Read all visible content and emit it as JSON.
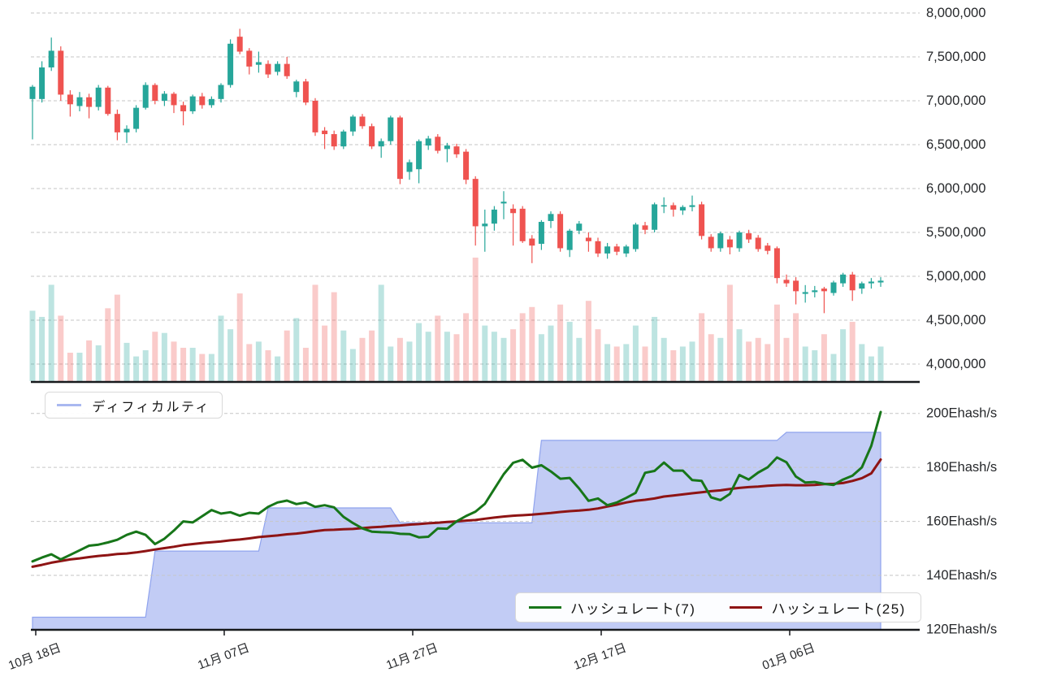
{
  "legends": {
    "difficulty": {
      "label": "ディフィカルティ",
      "swatch_color": "#a9b8f0"
    },
    "hashrate7": {
      "label": "ハッシュレート(7)",
      "swatch_color": "#177619"
    },
    "hashrate25": {
      "label": "ハッシュレート(25)",
      "swatch_color": "#8e1414"
    }
  },
  "colors": {
    "candle_up": "#26a69a",
    "candle_down": "#ef5350",
    "volume_up": "rgba(38,166,154,0.30)",
    "volume_down": "rgba(239,83,80,0.30)",
    "difficulty_fill": "#c2ccf5",
    "difficulty_line": "#8fa3ee",
    "hashrate7_line": "#177619",
    "hashrate25_line": "#8e1414",
    "grid": "#c6c6c6",
    "axis": "#17191c",
    "text": "#26282b"
  },
  "price_axis": {
    "unit_multiplier": 1000000,
    "ticks": [
      {
        "value": 8.0,
        "label": "8,000,000"
      },
      {
        "value": 7.5,
        "label": "7,500,000"
      },
      {
        "value": 7.0,
        "label": "7,000,000"
      },
      {
        "value": 6.5,
        "label": "6,500,000"
      },
      {
        "value": 6.0,
        "label": "6,000,000"
      },
      {
        "value": 5.5,
        "label": "5,500,000"
      },
      {
        "value": 5.0,
        "label": "5,000,000"
      },
      {
        "value": 4.5,
        "label": "4,500,000"
      },
      {
        "value": 4.0,
        "label": "4,000,000"
      }
    ]
  },
  "hash_axis": {
    "ticks": [
      {
        "value": 200,
        "label": "200Ehash/s"
      },
      {
        "value": 180,
        "label": "180Ehash/s"
      },
      {
        "value": 160,
        "label": "160Ehash/s"
      },
      {
        "value": 140,
        "label": "140Ehash/s"
      },
      {
        "value": 120,
        "label": "120Ehash/s"
      }
    ]
  },
  "date_axis": {
    "ticks": [
      {
        "day": 0,
        "label": "10月 18日"
      },
      {
        "day": 20,
        "label": "11月 07日"
      },
      {
        "day": 40,
        "label": "11月 27日"
      },
      {
        "day": 60,
        "label": "12月 17日"
      },
      {
        "day": 80,
        "label": "01月 06日"
      }
    ]
  },
  "chart_data": [
    {
      "type": "candlestick",
      "panel": "price",
      "price_unit": "JPY",
      "value_scale": 1000000,
      "ylim": [
        4.0,
        8.0
      ],
      "grid": "dashed-horizontal",
      "columns": [
        "open",
        "high",
        "low",
        "close",
        "volume_rel"
      ],
      "candles": [
        [
          7.02,
          7.18,
          6.56,
          7.16,
          0.57
        ],
        [
          7.02,
          7.45,
          6.98,
          7.38,
          0.52
        ],
        [
          7.38,
          7.72,
          7.34,
          7.57,
          0.78
        ],
        [
          7.57,
          7.62,
          7.0,
          7.07,
          0.53
        ],
        [
          7.07,
          7.12,
          6.82,
          6.96,
          0.23
        ],
        [
          6.94,
          7.1,
          6.88,
          7.04,
          0.23
        ],
        [
          7.04,
          7.08,
          6.8,
          6.93,
          0.33
        ],
        [
          6.93,
          7.18,
          6.89,
          7.15,
          0.29
        ],
        [
          7.15,
          7.17,
          6.83,
          6.85,
          0.59
        ],
        [
          6.85,
          6.9,
          6.55,
          6.64,
          0.7
        ],
        [
          6.64,
          6.72,
          6.52,
          6.68,
          0.31
        ],
        [
          6.68,
          6.95,
          6.64,
          6.92,
          0.2
        ],
        [
          6.92,
          7.21,
          6.9,
          7.18,
          0.25
        ],
        [
          7.18,
          7.2,
          6.96,
          7.0,
          0.4
        ],
        [
          7.0,
          7.11,
          6.94,
          7.08,
          0.39
        ],
        [
          7.08,
          7.1,
          6.86,
          6.95,
          0.32
        ],
        [
          6.95,
          6.99,
          6.72,
          6.88,
          0.27
        ],
        [
          6.88,
          7.07,
          6.85,
          7.05,
          0.27
        ],
        [
          7.05,
          7.09,
          6.91,
          6.95,
          0.22
        ],
        [
          6.95,
          7.05,
          6.92,
          7.02,
          0.22
        ],
        [
          7.02,
          7.2,
          6.98,
          7.18,
          0.53
        ],
        [
          7.18,
          7.7,
          7.15,
          7.65,
          0.42
        ],
        [
          7.73,
          7.82,
          7.53,
          7.56,
          0.71
        ],
        [
          7.57,
          7.6,
          7.3,
          7.39,
          0.3
        ],
        [
          7.41,
          7.56,
          7.32,
          7.44,
          0.32
        ],
        [
          7.42,
          7.46,
          7.26,
          7.3,
          0.25
        ],
        [
          7.33,
          7.45,
          7.29,
          7.42,
          0.2
        ],
        [
          7.42,
          7.5,
          7.25,
          7.28,
          0.41
        ],
        [
          7.1,
          7.24,
          7.04,
          7.22,
          0.51
        ],
        [
          7.22,
          7.25,
          6.95,
          6.98,
          0.27
        ],
        [
          7.0,
          7.03,
          6.6,
          6.64,
          0.78
        ],
        [
          6.66,
          6.7,
          6.45,
          6.62,
          0.45
        ],
        [
          6.62,
          6.66,
          6.44,
          6.48,
          0.72
        ],
        [
          6.48,
          6.67,
          6.45,
          6.65,
          0.41
        ],
        [
          6.65,
          6.84,
          6.6,
          6.82,
          0.26
        ],
        [
          6.82,
          6.85,
          6.68,
          6.71,
          0.35
        ],
        [
          6.71,
          6.74,
          6.45,
          6.48,
          0.41
        ],
        [
          6.48,
          6.57,
          6.35,
          6.54,
          0.78
        ],
        [
          6.54,
          6.83,
          6.5,
          6.81,
          0.28
        ],
        [
          6.81,
          6.83,
          6.05,
          6.11,
          0.35
        ],
        [
          6.19,
          6.33,
          6.1,
          6.3,
          0.32
        ],
        [
          6.22,
          6.56,
          6.06,
          6.54,
          0.47
        ],
        [
          6.49,
          6.6,
          6.44,
          6.57,
          0.4
        ],
        [
          6.59,
          6.62,
          6.4,
          6.43,
          0.53
        ],
        [
          6.45,
          6.52,
          6.3,
          6.49,
          0.4
        ],
        [
          6.48,
          6.51,
          6.35,
          6.39,
          0.38
        ],
        [
          6.42,
          6.45,
          6.05,
          6.1,
          0.55
        ],
        [
          6.11,
          6.14,
          5.35,
          5.57,
          1.0
        ],
        [
          5.57,
          5.76,
          5.28,
          5.6,
          0.45
        ],
        [
          5.6,
          5.8,
          5.52,
          5.76,
          0.4
        ],
        [
          5.83,
          5.97,
          5.65,
          5.85,
          0.35
        ],
        [
          5.77,
          5.82,
          5.35,
          5.72,
          0.42
        ],
        [
          5.77,
          5.8,
          5.38,
          5.4,
          0.55
        ],
        [
          5.43,
          5.47,
          5.15,
          5.35,
          0.6
        ],
        [
          5.37,
          5.64,
          5.3,
          5.62,
          0.38
        ],
        [
          5.63,
          5.74,
          5.55,
          5.71,
          0.45
        ],
        [
          5.71,
          5.74,
          5.28,
          5.32,
          0.62
        ],
        [
          5.3,
          5.54,
          5.22,
          5.52,
          0.48
        ],
        [
          5.52,
          5.63,
          5.48,
          5.6,
          0.35
        ],
        [
          5.44,
          5.5,
          5.28,
          5.4,
          0.65
        ],
        [
          5.4,
          5.44,
          5.22,
          5.26,
          0.42
        ],
        [
          5.26,
          5.38,
          5.2,
          5.34,
          0.3
        ],
        [
          5.34,
          5.37,
          5.24,
          5.28,
          0.28
        ],
        [
          5.26,
          5.36,
          5.22,
          5.34,
          0.3
        ],
        [
          5.31,
          5.61,
          5.28,
          5.59,
          0.45
        ],
        [
          5.58,
          5.62,
          5.48,
          5.53,
          0.28
        ],
        [
          5.53,
          5.84,
          5.5,
          5.82,
          0.52
        ],
        [
          5.81,
          5.9,
          5.72,
          5.81,
          0.35
        ],
        [
          5.81,
          5.84,
          5.68,
          5.76,
          0.25
        ],
        [
          5.75,
          5.81,
          5.7,
          5.79,
          0.28
        ],
        [
          5.79,
          5.92,
          5.74,
          5.81,
          0.32
        ],
        [
          5.82,
          5.85,
          5.42,
          5.46,
          0.55
        ],
        [
          5.45,
          5.48,
          5.28,
          5.32,
          0.38
        ],
        [
          5.32,
          5.51,
          5.28,
          5.49,
          0.35
        ],
        [
          5.42,
          5.46,
          5.25,
          5.33,
          0.78
        ],
        [
          5.32,
          5.52,
          5.28,
          5.5,
          0.42
        ],
        [
          5.49,
          5.53,
          5.38,
          5.42,
          0.32
        ],
        [
          5.44,
          5.47,
          5.28,
          5.31,
          0.35
        ],
        [
          5.35,
          5.38,
          5.25,
          5.29,
          0.3
        ],
        [
          5.32,
          5.34,
          4.92,
          4.98,
          0.62
        ],
        [
          4.96,
          5.02,
          4.88,
          4.92,
          0.35
        ],
        [
          4.95,
          4.99,
          4.68,
          4.83,
          0.55
        ],
        [
          4.8,
          4.9,
          4.7,
          4.82,
          0.28
        ],
        [
          4.82,
          4.89,
          4.76,
          4.84,
          0.25
        ],
        [
          4.86,
          4.88,
          4.58,
          4.83,
          0.38
        ],
        [
          4.81,
          4.95,
          4.78,
          4.93,
          0.22
        ],
        [
          4.92,
          5.04,
          4.88,
          5.02,
          0.42
        ],
        [
          5.02,
          5.05,
          4.72,
          4.84,
          0.48
        ],
        [
          4.86,
          4.94,
          4.8,
          4.92,
          0.3
        ],
        [
          4.92,
          4.98,
          4.86,
          4.94,
          0.2
        ],
        [
          4.93,
          4.99,
          4.88,
          4.95,
          0.28
        ]
      ]
    },
    {
      "type": "line",
      "panel": "hashrate",
      "unit": "Ehash/s",
      "ylim": [
        120,
        200
      ],
      "grid": "dashed-horizontal",
      "legend_position": "top-left-and-bottom-right",
      "series": [
        {
          "name": "ディフィカルティ",
          "style": "area-step",
          "values": [
            124.5,
            124.5,
            124.5,
            124.5,
            124.5,
            124.5,
            124.5,
            124.5,
            124.5,
            124.5,
            124.5,
            124.5,
            124.5,
            149,
            149,
            149,
            149,
            149,
            149,
            149,
            149,
            149,
            149,
            149,
            149,
            165,
            165,
            165,
            165,
            165,
            165,
            165,
            165,
            165,
            165,
            165,
            165,
            165,
            165,
            159.5,
            159.5,
            159.5,
            159.5,
            159.5,
            159.5,
            159.5,
            159.5,
            159.5,
            159.5,
            159.5,
            159.5,
            159.5,
            159.5,
            159.5,
            190,
            190,
            190,
            190,
            190,
            190,
            190,
            190,
            190,
            190,
            190,
            190,
            190,
            190,
            190,
            190,
            190,
            190,
            190,
            190,
            190,
            190,
            190,
            190,
            190,
            190,
            193,
            193,
            193,
            193,
            193,
            193,
            193,
            193,
            193,
            193,
            193
          ]
        },
        {
          "name": "ハッシュレート(7)",
          "style": "line",
          "values": [
            145.2,
            146.6,
            147.8,
            145.9,
            147.6,
            149.3,
            151.0,
            151.4,
            152.2,
            153.2,
            155.0,
            156.2,
            155.0,
            151.6,
            153.6,
            156.6,
            160.0,
            159.6,
            161.9,
            164.2,
            162.9,
            163.4,
            162.1,
            163.2,
            162.9,
            165.4,
            167.0,
            167.7,
            166.4,
            167.0,
            165.4,
            166.0,
            165.2,
            161.7,
            159.4,
            157.4,
            156.2,
            156.0,
            155.9,
            155.4,
            155.3,
            154.1,
            154.3,
            157.4,
            157.3,
            160.0,
            162.0,
            163.6,
            166.5,
            172.0,
            177.5,
            181.7,
            182.8,
            179.9,
            180.8,
            178.5,
            175.8,
            176.1,
            172.2,
            167.6,
            168.5,
            166.0,
            167.0,
            168.7,
            170.6,
            178.0,
            178.7,
            181.8,
            178.8,
            178.8,
            175.3,
            175.0,
            168.9,
            167.9,
            170.2,
            177.2,
            175.5,
            178.1,
            180.0,
            183.7,
            181.9,
            176.6,
            174.4,
            174.6,
            173.9,
            173.5,
            175.5,
            176.9,
            180.0,
            188.0,
            200.5
          ]
        },
        {
          "name": "ハッシュレート(25)",
          "style": "line",
          "values": [
            143.2,
            143.9,
            144.7,
            145.3,
            145.9,
            146.3,
            146.8,
            147.2,
            147.5,
            147.9,
            148.1,
            148.5,
            149.0,
            149.6,
            150.1,
            150.6,
            151.2,
            151.6,
            152.0,
            152.3,
            152.6,
            153.0,
            153.3,
            153.7,
            154.2,
            154.5,
            154.8,
            155.2,
            155.5,
            155.9,
            156.4,
            156.8,
            156.9,
            157.1,
            157.2,
            157.5,
            157.8,
            158.0,
            158.3,
            158.5,
            158.8,
            159.0,
            159.3,
            159.5,
            159.8,
            160.0,
            160.3,
            160.5,
            161.0,
            161.4,
            161.8,
            162.1,
            162.3,
            162.5,
            162.8,
            163.1,
            163.5,
            163.8,
            164.0,
            164.3,
            164.8,
            165.5,
            166.2,
            167.0,
            167.6,
            168.0,
            168.5,
            169.2,
            169.6,
            170.0,
            170.4,
            170.8,
            171.2,
            171.5,
            172.0,
            172.4,
            172.7,
            172.9,
            173.2,
            173.4,
            173.5,
            173.4,
            173.4,
            173.5,
            173.8,
            173.9,
            174.2,
            175.0,
            176.0,
            177.8,
            182.9
          ]
        }
      ]
    }
  ]
}
